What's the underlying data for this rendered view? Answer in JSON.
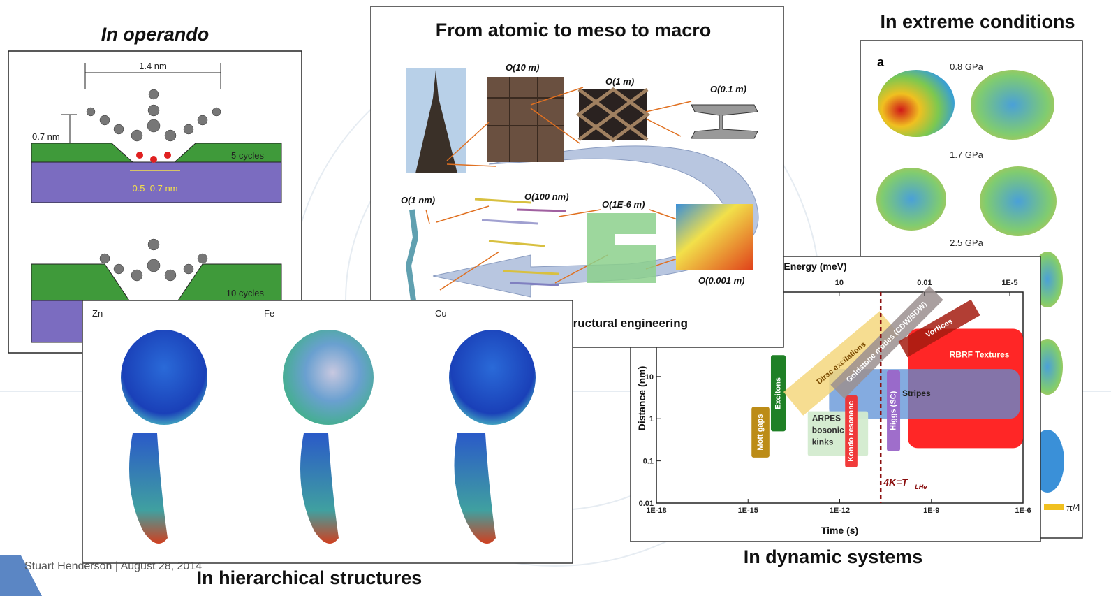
{
  "slide": {
    "footer": "Stuart Henderson | August 28, 2014"
  },
  "panels": {
    "operando": {
      "title": "In operando",
      "labels": [
        "1.4 nm",
        "0.7 nm",
        "5 cycles",
        "0.5–0.7 nm",
        "10 cycles"
      ]
    },
    "scales": {
      "title": "From atomic to meso to macro",
      "labels": [
        "O(10 m)",
        "O(1 m)",
        "O(0.1 m)",
        "O(1 nm)",
        "O(100 nm)",
        "O(1E-6 m)",
        "O(0.001 m)"
      ],
      "caption": "tructural engineering"
    },
    "extreme": {
      "title": "In extreme conditions",
      "labels": [
        "a",
        "0.8 GPa",
        "1.7 GPa",
        "2.5 GPa",
        "π/4"
      ]
    },
    "hierarchical": {
      "title": "In hierarchical structures",
      "labels": [
        "Zn",
        "Fe",
        "Cu"
      ]
    },
    "dynamic": {
      "title": "In dynamic systems",
      "chart": {
        "type": "region",
        "x_label": "Time (s)",
        "y_label": "Distance (nm)",
        "x2_label": "Energy (meV)",
        "xscale": "log",
        "yscale": "log",
        "xlim": [
          1e-18,
          1e-06
        ],
        "ylim": [
          0.01,
          1000
        ],
        "x2lim": [
          27500000,
          3.4e-06
        ],
        "xticks": [
          {
            "value": 1e-18,
            "label": "1E-18"
          },
          {
            "value": 1e-15,
            "label": "1E-15"
          },
          {
            "value": 1e-12,
            "label": "1E-12"
          },
          {
            "value": 1e-09,
            "label": "1E-9"
          },
          {
            "value": 1e-06,
            "label": "1E-6"
          }
        ],
        "yticks": [
          0.01,
          0.1,
          1,
          10
        ],
        "x2ticks": [
          10,
          0.01,
          {
            "value": 1e-05,
            "label": "1E-5"
          }
        ],
        "regions": [
          {
            "label": "RBRF Textures",
            "color": "#ff1a1a",
            "x": [
              1.7e-10,
              1e-06
            ],
            "y": [
              0.2,
              135
            ],
            "vertical": false
          },
          {
            "label": "Stripes",
            "color": "#5b8fd6",
            "x": [
              4.5e-13,
              7.8e-07
            ],
            "y": [
              1,
              15
            ],
            "vertical": false
          },
          {
            "label": "Mott gaps",
            "color": "#b8860b",
            "x": [
              1.3e-15,
              5e-15
            ],
            "y": [
              0.12,
              1.9
            ],
            "vertical": true
          },
          {
            "label": "Excitons",
            "color": "#13791a",
            "x": [
              5.6e-15,
              1.7e-14
            ],
            "y": [
              0.5,
              32
            ],
            "vertical": true
          },
          {
            "label": [
              "ARPES",
              "bosonic",
              "kinks"
            ],
            "color": "#d3ebcf",
            "x": [
              9e-14,
              8.5e-12
            ],
            "y": [
              0.13,
              1.5
            ],
            "vertical": false
          },
          {
            "label": "Kondo resonanc",
            "color": "#f03030",
            "x": [
              1.5e-12,
              3.8e-12
            ],
            "y": [
              0.07,
              3.6
            ],
            "vertical": true
          },
          {
            "label": "Higgs (SC)",
            "color": "#9a66c8",
            "x": [
              3.5e-11,
              9.5e-11
            ],
            "y": [
              0.17,
              14
            ],
            "vertical": true
          }
        ],
        "bands": [
          {
            "label": "Dirac excitations",
            "color": "#f5d77e"
          },
          {
            "label": "Goldstone modes (CDW/SDW)",
            "color": "#9b8f8f"
          },
          {
            "label": "Vortices",
            "color": "#a51c10"
          }
        ],
        "marker": {
          "x": 2.2e-11,
          "label": "4K=T",
          "subscript": "LHe",
          "color": "#8b1010"
        }
      }
    }
  }
}
